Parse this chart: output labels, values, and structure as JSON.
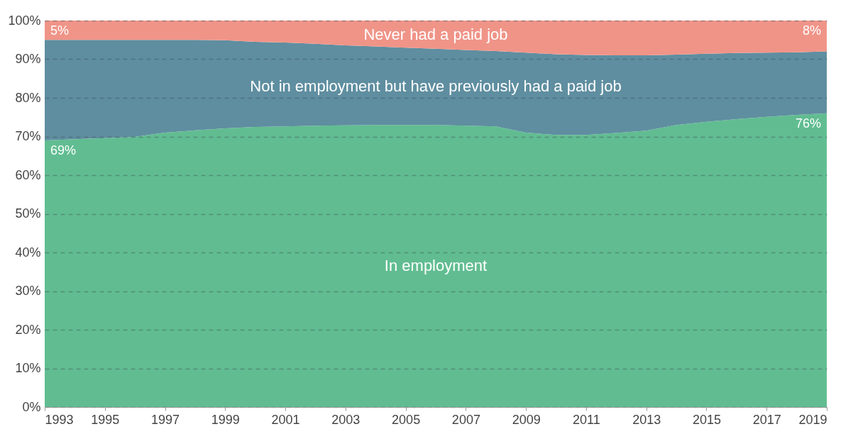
{
  "chart_data": {
    "type": "area",
    "stacked": true,
    "grid": "y",
    "legend": false,
    "x": [
      1993,
      1994,
      1995,
      1996,
      1997,
      1998,
      1999,
      2000,
      2001,
      2002,
      2003,
      2004,
      2005,
      2006,
      2007,
      2008,
      2009,
      2010,
      2011,
      2012,
      2013,
      2014,
      2015,
      2016,
      2017,
      2018,
      2019
    ],
    "xlim": [
      1993,
      2019
    ],
    "xticks": [
      1993,
      1995,
      1997,
      1999,
      2001,
      2003,
      2005,
      2007,
      2009,
      2011,
      2013,
      2015,
      2017,
      2019
    ],
    "ylim": [
      0,
      100
    ],
    "yticks": [
      {
        "value": 0,
        "label": "0%"
      },
      {
        "value": 10,
        "label": "10%"
      },
      {
        "value": 20,
        "label": "20%"
      },
      {
        "value": 30,
        "label": "30%"
      },
      {
        "value": 40,
        "label": "40%"
      },
      {
        "value": 50,
        "label": "50%"
      },
      {
        "value": 60,
        "label": "60%"
      },
      {
        "value": 70,
        "label": "70%"
      },
      {
        "value": 80,
        "label": "80%"
      },
      {
        "value": 90,
        "label": "90%"
      },
      {
        "value": 100,
        "label": "100%"
      }
    ],
    "series": [
      {
        "name": "In employment",
        "color": "#61bd91",
        "values": [
          69,
          69.3,
          69.6,
          69.9,
          71.0,
          71.6,
          72.1,
          72.5,
          72.6,
          72.8,
          72.9,
          73.0,
          73.0,
          73.0,
          72.8,
          72.6,
          71.0,
          70.4,
          70.4,
          70.9,
          71.5,
          73.0,
          73.8,
          74.5,
          75.1,
          75.6,
          76
        ],
        "value_labels": [
          "69%",
          null,
          null,
          null,
          null,
          null,
          null,
          null,
          null,
          null,
          null,
          null,
          null,
          null,
          null,
          null,
          null,
          null,
          null,
          null,
          null,
          null,
          null,
          null,
          null,
          null,
          "76%"
        ]
      },
      {
        "name": "Not in employment but have previously had a paid job",
        "color": "#5f8ea0",
        "values": [
          26,
          25.7,
          25.4,
          25.1,
          24,
          23.4,
          22.8,
          22,
          21.7,
          21.2,
          20.7,
          20.3,
          20,
          19.7,
          19.6,
          19.5,
          20.7,
          20.9,
          20.7,
          20.1,
          19.5,
          18.2,
          17.6,
          17.1,
          16.6,
          16.2,
          16
        ]
      },
      {
        "name": "Never had a paid job",
        "color": "#f09488",
        "values": [
          5,
          5,
          5,
          5,
          5,
          5,
          5.1,
          5.5,
          5.7,
          6.0,
          6.4,
          6.7,
          7.0,
          7.3,
          7.6,
          7.9,
          8.3,
          8.7,
          8.9,
          9.0,
          9.0,
          8.8,
          8.6,
          8.4,
          8.3,
          8.2,
          8
        ],
        "value_labels": [
          "5%",
          null,
          null,
          null,
          null,
          null,
          null,
          null,
          null,
          null,
          null,
          null,
          null,
          null,
          null,
          null,
          null,
          null,
          null,
          null,
          null,
          null,
          null,
          null,
          null,
          null,
          "8%"
        ]
      }
    ]
  }
}
